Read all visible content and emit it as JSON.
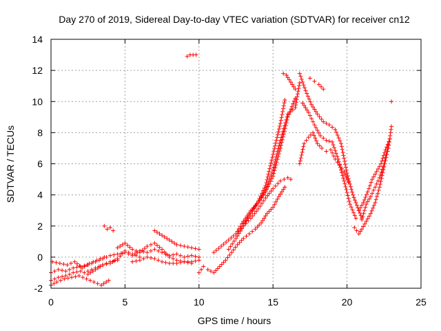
{
  "chart_data": {
    "type": "scatter",
    "title": "Day 270 of 2019, Sidereal Day-to-day VTEC variation (SDTVAR) for receiver cn12",
    "xlabel": "GPS time / hours",
    "ylabel": "SDTVAR / TECUs",
    "xlim": [
      0,
      25
    ],
    "ylim": [
      -2,
      14
    ],
    "xticks": [
      0,
      5,
      10,
      15,
      20,
      25
    ],
    "yticks": [
      -2,
      0,
      2,
      4,
      6,
      8,
      10,
      12,
      14
    ],
    "grid": true,
    "marker": "+",
    "series": [
      {
        "name": "SDTVAR",
        "color": "#ff0000",
        "segments": [
          {
            "x": [
              0.0,
              0.5,
              1.0,
              1.5,
              2.0,
              2.5,
              3.0,
              3.5,
              4.0,
              4.5,
              5.0,
              5.5,
              6.0,
              6.5,
              7.0,
              7.5,
              8.0,
              8.5,
              9.0,
              9.5,
              10.0
            ],
            "y": [
              -1.0,
              -0.8,
              -0.9,
              -0.7,
              -0.6,
              -0.5,
              -0.3,
              -0.1,
              0.1,
              0.2,
              0.3,
              0.1,
              0.4,
              0.3,
              0.5,
              0.3,
              0.1,
              0.2,
              0.0,
              0.1,
              0.0
            ]
          },
          {
            "x": [
              0.0,
              0.5,
              1.0,
              1.5,
              2.0,
              2.5,
              3.0,
              3.5,
              4.0,
              4.5
            ],
            "y": [
              -1.5,
              -1.3,
              -1.2,
              -1.0,
              -0.9,
              -1.1,
              -0.8,
              -0.5,
              -0.3,
              -0.2
            ]
          },
          {
            "x": [
              0.1,
              0.6,
              1.1,
              1.6,
              2.1,
              2.6,
              3.1,
              3.6
            ],
            "y": [
              -0.3,
              -0.4,
              -0.5,
              -0.3,
              -0.7,
              -0.4,
              -0.2,
              0.0
            ]
          },
          {
            "x": [
              0.0,
              0.4,
              0.9,
              1.4,
              1.9,
              2.4,
              2.9,
              3.4,
              3.9
            ],
            "y": [
              -1.8,
              -1.6,
              -1.4,
              -1.3,
              -1.2,
              -1.4,
              -1.6,
              -1.8,
              -1.5
            ]
          },
          {
            "x": [
              2.5,
              3.0,
              3.5,
              4.0,
              4.5,
              5.0,
              5.5,
              6.0
            ],
            "y": [
              -0.9,
              -0.7,
              -0.5,
              -0.4,
              -0.1,
              0.4,
              0.2,
              0.0
            ]
          },
          {
            "x": [
              4.5,
              5.0,
              5.5,
              6.0,
              6.5,
              7.0,
              7.5,
              8.0,
              8.5,
              9.0,
              9.5,
              10.0
            ],
            "y": [
              0.6,
              0.9,
              0.5,
              0.3,
              0.7,
              0.9,
              0.5,
              0.0,
              -0.2,
              -0.3,
              -0.3,
              -0.2
            ]
          },
          {
            "x": [
              7.0,
              7.5,
              8.0,
              8.5,
              9.0,
              9.5,
              10.0
            ],
            "y": [
              1.7,
              1.4,
              1.1,
              0.8,
              0.7,
              0.6,
              0.5
            ]
          },
          {
            "x": [
              5.5,
              6.0,
              6.5,
              7.0,
              7.5,
              8.0,
              8.5,
              9.0,
              9.5
            ],
            "y": [
              -0.3,
              -0.2,
              0.0,
              -0.1,
              -0.3,
              -0.4,
              -0.4,
              -0.3,
              -0.4
            ]
          },
          {
            "x": [
              3.6,
              3.8,
              4.0,
              4.2
            ],
            "y": [
              2.0,
              1.8,
              1.9,
              1.7
            ]
          },
          {
            "x": [
              9.2,
              9.4,
              9.6,
              9.8
            ],
            "y": [
              12.9,
              13.0,
              13.0,
              13.0
            ]
          },
          {
            "x": [
              10.0,
              10.3,
              10.6,
              11.0,
              11.4,
              11.8,
              12.2,
              12.6,
              13.0,
              13.4,
              13.8,
              14.2,
              14.6,
              15.0,
              15.4,
              15.8
            ],
            "y": [
              -1.0,
              -0.6,
              -0.8,
              -1.0,
              -0.6,
              -0.2,
              0.3,
              0.8,
              1.2,
              1.5,
              1.8,
              2.2,
              2.8,
              3.2,
              3.9,
              4.5
            ]
          },
          {
            "x": [
              11.0,
              11.5,
              12.0,
              12.5,
              13.0,
              13.5,
              14.0,
              14.5,
              15.0,
              15.5,
              16.0,
              16.2
            ],
            "y": [
              0.3,
              0.7,
              1.1,
              1.5,
              2.0,
              2.5,
              3.1,
              3.8,
              4.4,
              4.9,
              5.1,
              5.0
            ]
          },
          {
            "x": [
              12.0,
              12.5,
              13.0,
              13.5,
              14.0,
              14.5,
              15.0,
              15.5,
              15.8
            ],
            "y": [
              0.5,
              1.2,
              2.0,
              2.8,
              3.6,
              4.6,
              6.6,
              8.6,
              10.1
            ]
          },
          {
            "x": [
              12.5,
              13.0,
              13.5,
              14.0,
              14.5,
              15.0,
              15.5,
              16.0,
              16.5
            ],
            "y": [
              1.5,
              2.3,
              3.0,
              3.5,
              4.2,
              5.2,
              7.0,
              9.0,
              10.2
            ]
          },
          {
            "x": [
              13.0,
              13.5,
              14.0,
              14.5,
              15.0,
              15.5,
              16.0,
              16.5,
              16.8
            ],
            "y": [
              2.2,
              2.9,
              3.5,
              4.3,
              5.6,
              7.5,
              9.2,
              9.6,
              11.2
            ]
          },
          {
            "x": [
              15.7,
              15.9,
              16.1,
              16.3,
              16.5
            ],
            "y": [
              11.8,
              11.7,
              11.4,
              11.1,
              10.8
            ]
          },
          {
            "x": [
              16.8,
              17.2,
              17.6,
              18.0,
              18.4,
              18.8,
              19.2,
              19.6,
              20.0,
              20.4,
              20.8,
              21.0
            ],
            "y": [
              11.8,
              10.7,
              9.8,
              9.2,
              8.7,
              8.5,
              8.2,
              7.3,
              5.4,
              4.0,
              3.0,
              2.5
            ]
          },
          {
            "x": [
              17.0,
              17.4,
              17.8,
              18.2,
              18.6,
              19.0,
              19.4,
              19.8,
              20.2,
              20.6
            ],
            "y": [
              9.9,
              9.3,
              8.5,
              7.8,
              7.5,
              7.4,
              6.3,
              4.9,
              3.4,
              2.5
            ]
          },
          {
            "x": [
              16.8,
              17.1,
              17.4,
              17.7,
              18.0,
              18.3,
              18.6,
              18.9,
              19.2,
              19.5,
              19.8,
              20.1
            ],
            "y": [
              6.0,
              7.3,
              7.7,
              8.0,
              7.3,
              7.0,
              6.8,
              6.9,
              6.3,
              5.9,
              5.5,
              4.8
            ]
          },
          {
            "x": [
              17.5,
              17.8,
              18.1,
              18.4
            ],
            "y": [
              11.5,
              11.3,
              11.1,
              10.8
            ]
          },
          {
            "x": [
              20.5,
              20.8,
              21.0,
              21.3,
              21.6,
              21.9,
              22.2,
              22.5,
              22.8,
              23.0
            ],
            "y": [
              1.9,
              1.5,
              1.8,
              2.3,
              2.8,
              3.5,
              4.5,
              5.8,
              7.0,
              8.4
            ]
          },
          {
            "x": [
              20.8,
              21.1,
              21.4,
              21.7,
              22.0,
              22.3,
              22.6,
              22.9
            ],
            "y": [
              3.0,
              3.5,
              4.2,
              5.0,
              5.5,
              6.0,
              6.9,
              7.6
            ]
          },
          {
            "x": [
              21.0,
              21.3,
              21.6,
              21.9,
              22.2,
              22.5,
              22.8
            ],
            "y": [
              2.4,
              3.4,
              3.9,
              4.5,
              5.1,
              6.0,
              7.2
            ]
          },
          {
            "x": [
              23.0
            ],
            "y": [
              10.0
            ]
          }
        ]
      }
    ]
  }
}
